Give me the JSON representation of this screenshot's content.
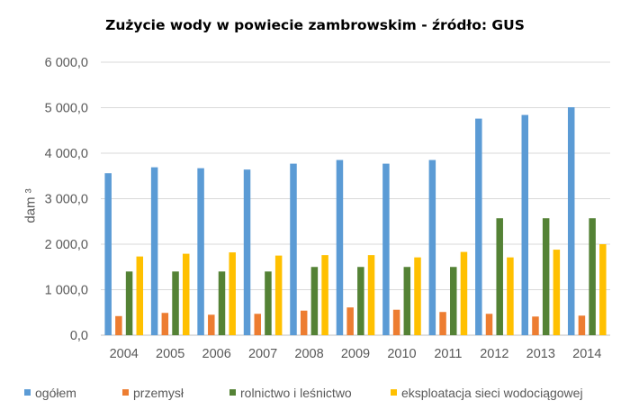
{
  "chart_data": {
    "type": "bar",
    "title": "Zużycie wody w powiecie zambrowskim   - źródło: GUS",
    "ylabel": "dam ³",
    "xlabel": "",
    "categories": [
      "2004",
      "2005",
      "2006",
      "2007",
      "2008",
      "2009",
      "2010",
      "2011",
      "2012",
      "2013",
      "2014"
    ],
    "ylim": [
      0,
      6000
    ],
    "yticks": [
      0,
      1000,
      2000,
      3000,
      4000,
      5000,
      6000
    ],
    "ytick_labels": [
      "0,0",
      "1 000,0",
      "2 000,0",
      "3 000,0",
      "4 000,0",
      "5 000,0",
      "6 000,0"
    ],
    "grid": true,
    "legend_position": "bottom",
    "series": [
      {
        "name": "ogółem",
        "color": "#5b9bd5",
        "values": [
          3560,
          3690,
          3670,
          3640,
          3770,
          3850,
          3770,
          3850,
          4760,
          4840,
          5010
        ]
      },
      {
        "name": "przemysł",
        "color": "#ed7d31",
        "values": [
          420,
          490,
          450,
          470,
          540,
          610,
          560,
          510,
          470,
          410,
          430
        ]
      },
      {
        "name": "rolnictwo i leśnictwo",
        "color": "#548235",
        "values": [
          1400,
          1400,
          1400,
          1400,
          1500,
          1500,
          1500,
          1500,
          2570,
          2570,
          2570
        ]
      },
      {
        "name": "eksploatacja sieci wodociągowej",
        "color": "#ffc000",
        "values": [
          1730,
          1790,
          1820,
          1750,
          1760,
          1760,
          1710,
          1830,
          1710,
          1880,
          2000
        ]
      }
    ]
  }
}
